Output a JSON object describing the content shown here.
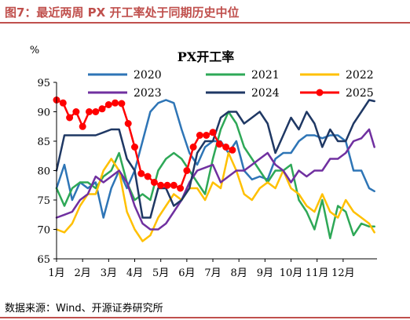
{
  "figure": {
    "title": "图7：最近两周 PX 开工率处于同期历史中位",
    "source": "数据来源：Wind、开源证券研究所"
  },
  "colors": {
    "accent": "#c0504d",
    "2020": "#2e75b6",
    "2021": "#2ea857",
    "2022": "#ffc000",
    "2023": "#7030a0",
    "2024": "#1f3864",
    "2025": "#ff0000"
  },
  "chart_data": {
    "type": "line",
    "title": "PX开工率",
    "ylabel": "%",
    "xlabel": "",
    "ylim": [
      65,
      95
    ],
    "yticks": [
      65,
      70,
      75,
      80,
      85,
      90,
      95
    ],
    "xlim": [
      1,
      13.3
    ],
    "xtick_positions": [
      1,
      2,
      3,
      4,
      5,
      6,
      7,
      8,
      9,
      10,
      11,
      12
    ],
    "xtick_labels": [
      "1月",
      "2月",
      "3月",
      "4月",
      "5月",
      "6月",
      "7月",
      "8月",
      "9月",
      "10月",
      "11月",
      "12月"
    ],
    "grid": false,
    "legend": "top",
    "series": [
      {
        "name": "2020",
        "x": [
          1,
          1.3,
          1.6,
          1.9,
          2.2,
          2.5,
          2.8,
          3.1,
          3.4,
          3.7,
          4.0,
          4.3,
          4.6,
          4.9,
          5.2,
          5.5,
          5.8,
          6.1,
          6.4,
          6.7,
          7.0,
          7.3,
          7.6,
          7.9,
          8.2,
          8.5,
          8.8,
          9.1,
          9.4,
          9.7,
          10.0,
          10.3,
          10.6,
          10.9,
          11.2,
          11.5,
          11.8,
          12.1,
          12.4,
          12.7,
          13.0,
          13.2
        ],
        "y": [
          77,
          81,
          75,
          78,
          77,
          78,
          72,
          77,
          80,
          77,
          80,
          85,
          90,
          91.5,
          92,
          91.5,
          87,
          83,
          81,
          84,
          85,
          85,
          83,
          85,
          80,
          78.5,
          79,
          78.5,
          82,
          83,
          83,
          85,
          86,
          86,
          85.5,
          86,
          86,
          85,
          80,
          80,
          77,
          76.5
        ]
      },
      {
        "name": "2021",
        "x": [
          1,
          1.3,
          1.6,
          1.9,
          2.2,
          2.5,
          2.8,
          3.1,
          3.4,
          3.7,
          4.0,
          4.3,
          4.6,
          4.9,
          5.2,
          5.5,
          5.8,
          6.1,
          6.4,
          6.7,
          7.0,
          7.3,
          7.6,
          7.9,
          8.2,
          8.5,
          8.8,
          9.1,
          9.4,
          9.7,
          10.0,
          10.3,
          10.6,
          10.9,
          11.2,
          11.5,
          11.8,
          12.1,
          12.4,
          12.7,
          13.0,
          13.2
        ],
        "y": [
          77,
          74,
          77,
          78,
          78,
          77,
          79,
          80,
          83,
          78,
          75,
          76,
          75,
          80,
          82,
          83,
          82,
          80,
          78,
          76,
          82,
          87,
          90,
          88,
          84,
          82,
          80,
          78,
          80,
          80,
          81,
          75,
          73,
          70,
          75,
          68.5,
          74,
          73,
          69,
          71,
          70.5,
          70.5
        ]
      },
      {
        "name": "2022",
        "x": [
          1,
          1.3,
          1.6,
          1.9,
          2.2,
          2.5,
          2.8,
          3.1,
          3.4,
          3.7,
          4.0,
          4.3,
          4.6,
          4.9,
          5.2,
          5.5,
          5.8,
          6.1,
          6.4,
          6.7,
          7.0,
          7.3,
          7.6,
          7.9,
          8.2,
          8.5,
          8.8,
          9.1,
          9.4,
          9.7,
          10.0,
          10.3,
          10.6,
          10.9,
          11.2,
          11.5,
          11.8,
          12.1,
          12.4,
          12.7,
          13.0,
          13.2
        ],
        "y": [
          70,
          69.5,
          71,
          74,
          76,
          76,
          80,
          82,
          80,
          73,
          70,
          68,
          69,
          72,
          74,
          76,
          75,
          77,
          77,
          75,
          78,
          77,
          83,
          80,
          76,
          75,
          77,
          78,
          77,
          80,
          77,
          76,
          74,
          73,
          76,
          73,
          72,
          75,
          73,
          72,
          71,
          69.5
        ]
      },
      {
        "name": "2023",
        "x": [
          1,
          1.3,
          1.6,
          1.9,
          2.2,
          2.5,
          2.8,
          3.1,
          3.4,
          3.7,
          4.0,
          4.3,
          4.6,
          4.9,
          5.2,
          5.5,
          5.8,
          6.1,
          6.4,
          6.7,
          7.0,
          7.3,
          7.6,
          7.9,
          8.2,
          8.5,
          8.8,
          9.1,
          9.4,
          9.7,
          10.0,
          10.3,
          10.6,
          10.9,
          11.2,
          11.5,
          11.8,
          12.1,
          12.4,
          12.7,
          13.0,
          13.2
        ],
        "y": [
          72,
          72.5,
          73,
          75,
          76,
          79,
          78,
          79,
          80,
          78,
          74,
          71,
          70,
          70,
          71,
          73,
          75,
          78,
          80,
          80.5,
          81,
          78,
          79,
          80,
          80,
          81,
          82,
          83,
          81,
          80,
          78,
          80,
          79,
          80,
          80,
          82,
          82,
          83,
          85,
          85.5,
          87,
          84
        ]
      },
      {
        "name": "2024",
        "x": [
          1,
          1.3,
          1.6,
          1.9,
          2.2,
          2.5,
          2.8,
          3.1,
          3.4,
          3.7,
          4.0,
          4.3,
          4.6,
          4.9,
          5.2,
          5.5,
          5.8,
          6.1,
          6.4,
          6.7,
          7.0,
          7.3,
          7.6,
          7.9,
          8.2,
          8.5,
          8.8,
          9.1,
          9.4,
          9.7,
          10.0,
          10.3,
          10.6,
          10.9,
          11.2,
          11.5,
          11.8,
          12.1,
          12.4,
          12.7,
          13.0,
          13.2
        ],
        "y": [
          80,
          86,
          86,
          86,
          86,
          86,
          86.5,
          87,
          87,
          82,
          80,
          72,
          72,
          77,
          77,
          74,
          75,
          77,
          83,
          85,
          85,
          89,
          90,
          90,
          88,
          89,
          90,
          88,
          83,
          86,
          89,
          87,
          90,
          88,
          84,
          87,
          85,
          85,
          88,
          90,
          92,
          91.8
        ]
      },
      {
        "name": "2025",
        "markers": true,
        "x": [
          1,
          1.25,
          1.5,
          1.75,
          2.0,
          2.25,
          2.5,
          2.75,
          3.0,
          3.25,
          3.5,
          3.75,
          4.0,
          4.25,
          4.5,
          4.75,
          5.0,
          5.25,
          5.5,
          5.75,
          6.0,
          6.25,
          6.5,
          6.75,
          7.0,
          7.25,
          7.5,
          7.75
        ],
        "y": [
          92,
          91.5,
          89,
          90,
          87.5,
          90,
          90,
          90.5,
          91.2,
          91.5,
          91.4,
          88,
          84,
          79.5,
          79,
          78,
          77.5,
          77.5,
          77.5,
          77,
          80,
          84,
          86,
          86,
          86.5,
          84.5,
          84,
          83.5
        ]
      }
    ]
  }
}
